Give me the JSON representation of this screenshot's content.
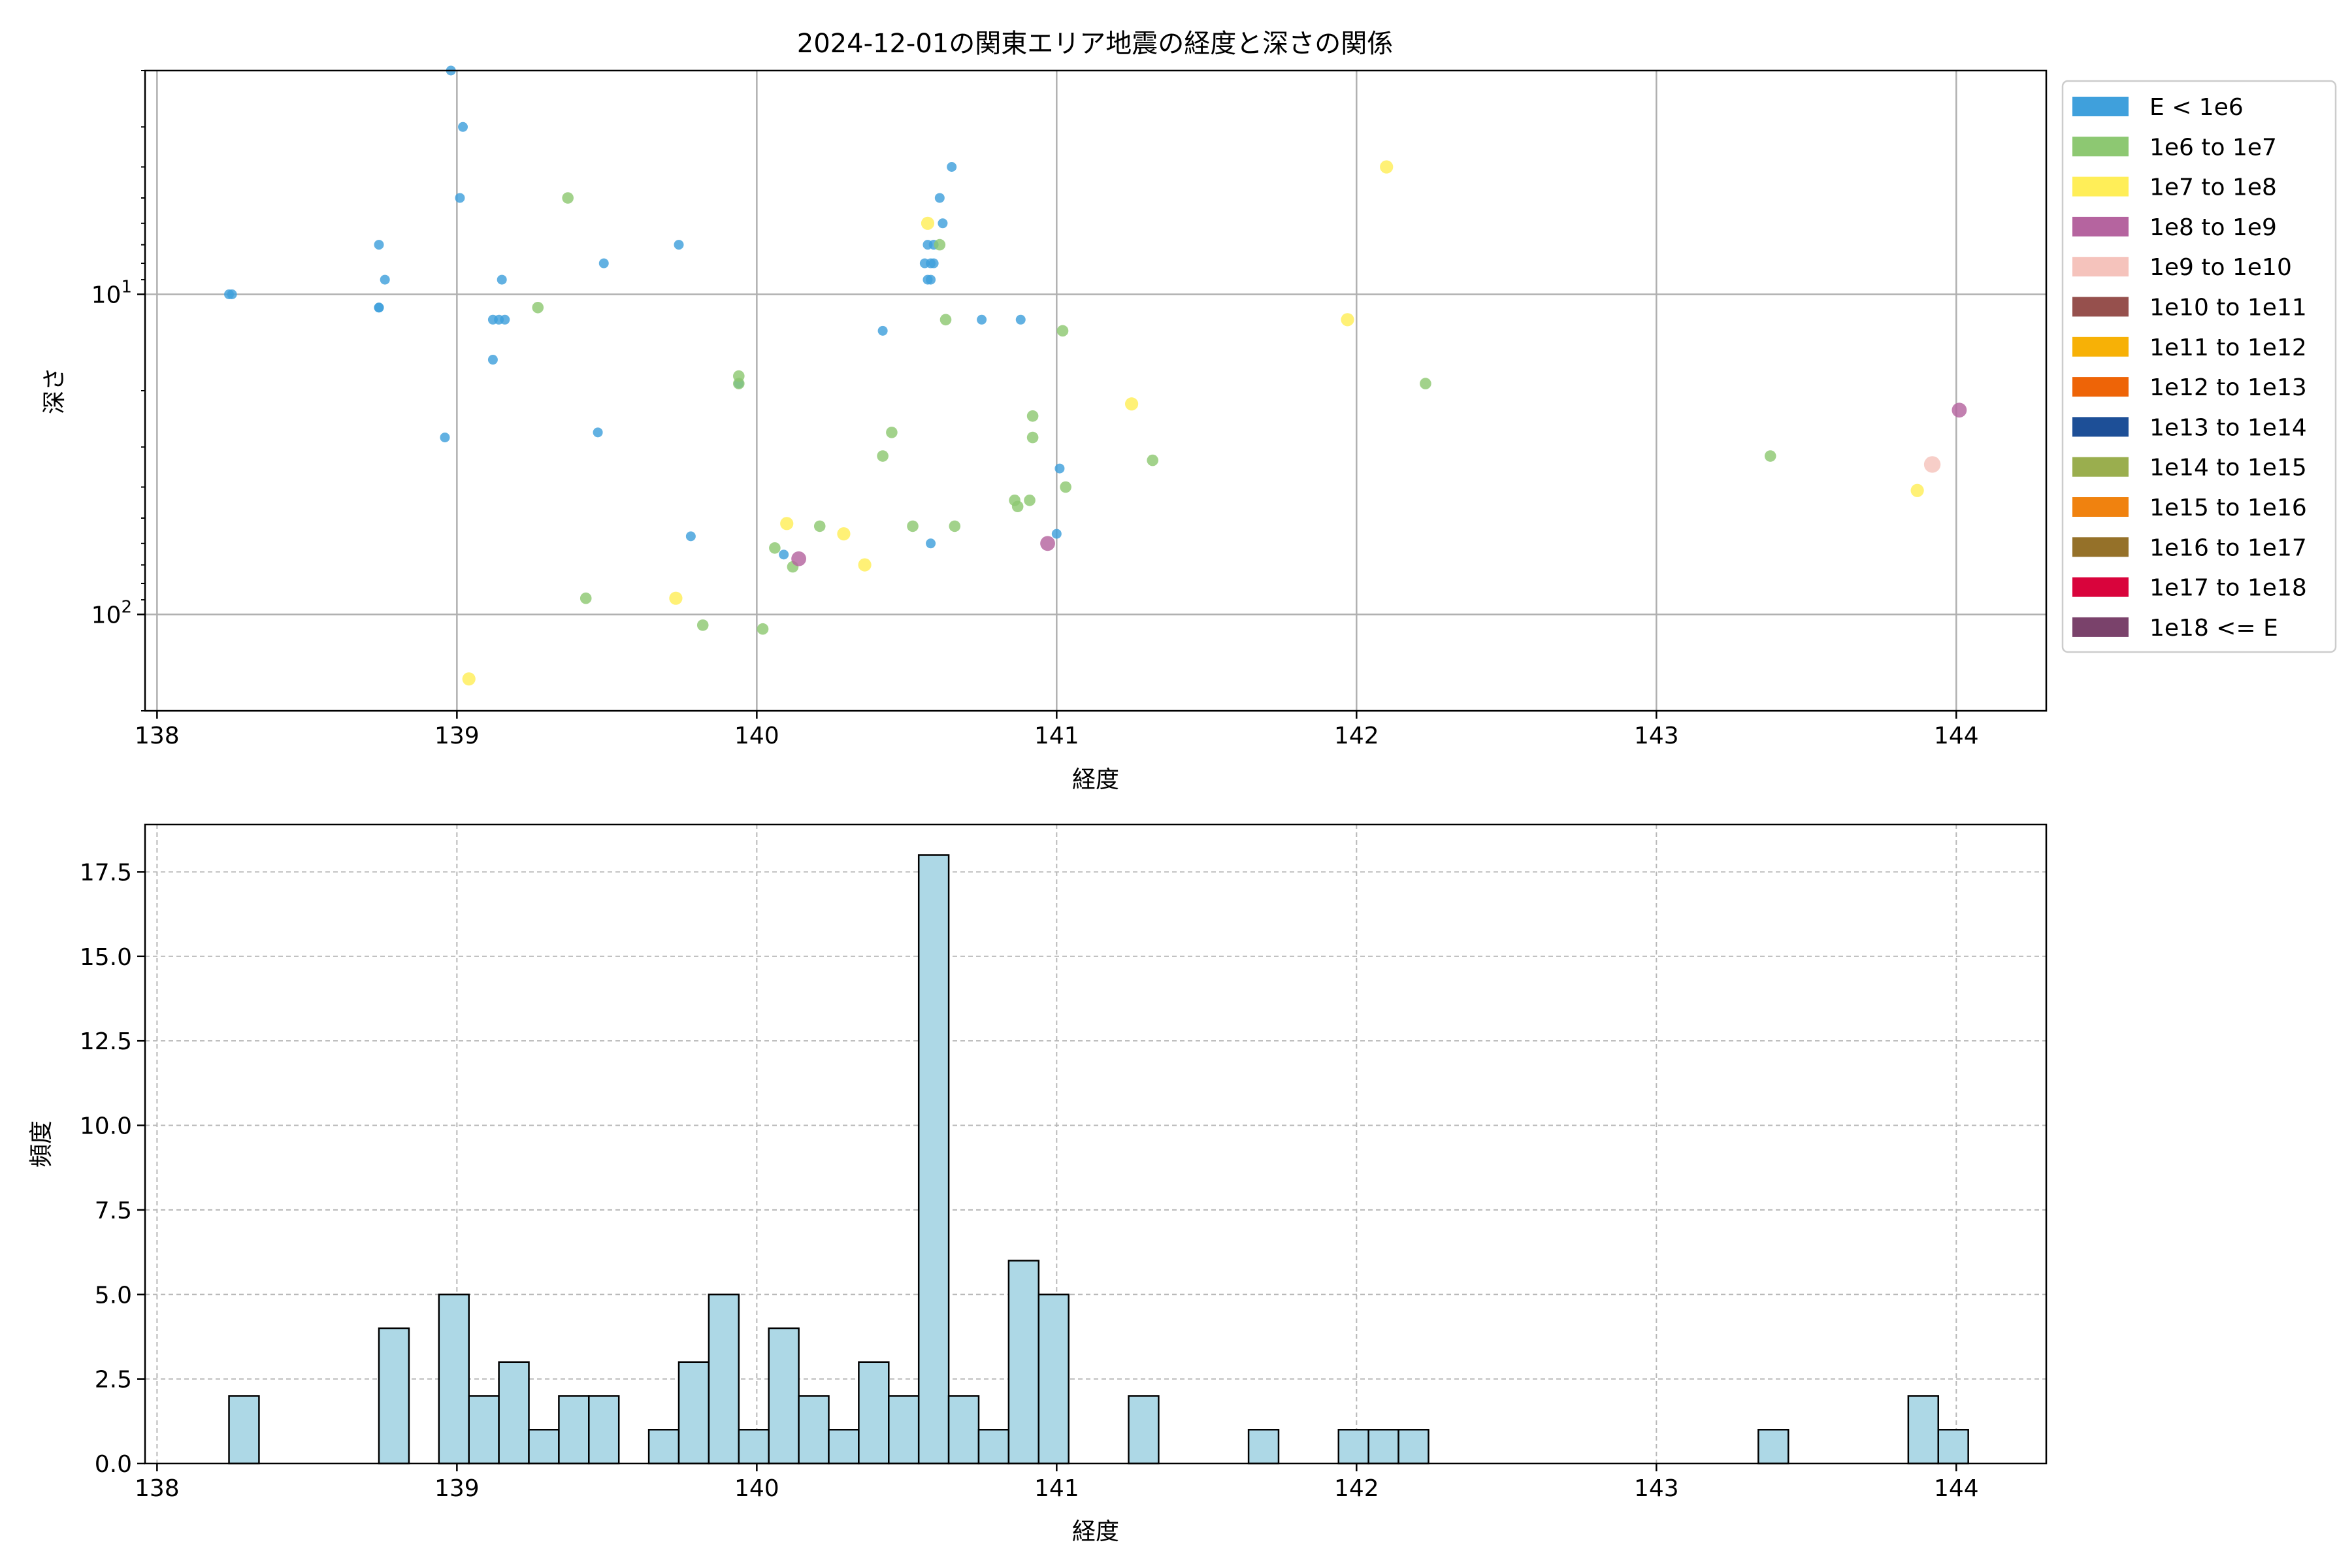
{
  "chart_data": [
    {
      "type": "scatter",
      "title": "2024-12-01の関東エリア地震の経度と深さの関係",
      "xlabel": "経度",
      "ylabel": "深さ",
      "xlim": [
        137.96,
        144.3
      ],
      "ylim_display": [
        200,
        2
      ],
      "yscale": "log",
      "y_inverted": true,
      "x_ticks": [
        "138",
        "139",
        "140",
        "141",
        "142",
        "143",
        "144"
      ],
      "y_ticks": [
        {
          "value": 10,
          "base": "10",
          "exp": "1"
        },
        {
          "value": 100,
          "base": "10",
          "exp": "2"
        }
      ],
      "grid": true,
      "legend_position": "outside-right",
      "legend": [
        {
          "label": "E < 1e6",
          "color": "#3fa0dc"
        },
        {
          "label": "1e6 to 1e7",
          "color": "#8dc872"
        },
        {
          "label": "1e7 to 1e8",
          "color": "#ffee58"
        },
        {
          "label": "1e8 to 1e9",
          "color": "#b5649f"
        },
        {
          "label": "1e9 to 1e10",
          "color": "#f5c3bc"
        },
        {
          "label": "1e10 to 1e11",
          "color": "#96504d"
        },
        {
          "label": "1e11 to 1e12",
          "color": "#f7b106"
        },
        {
          "label": "1e12 to 1e13",
          "color": "#ee6407"
        },
        {
          "label": "1e13 to 1e14",
          "color": "#1d4f97"
        },
        {
          "label": "1e14 to 1e15",
          "color": "#9aae4e"
        },
        {
          "label": "1e15 to 1e16",
          "color": "#f0820f"
        },
        {
          "label": "1e16 to 1e17",
          "color": "#957129"
        },
        {
          "label": "1e17 to 1e18",
          "color": "#d9043c"
        },
        {
          "label": "1e18 <= E",
          "color": "#7a426b"
        }
      ],
      "series": [
        {
          "legend_index": 0,
          "points": [
            [
              138.24,
              10
            ],
            [
              138.25,
              10
            ],
            [
              138.74,
              7
            ],
            [
              138.76,
              9
            ],
            [
              138.74,
              11
            ],
            [
              138.74,
              11
            ],
            [
              138.98,
              2
            ],
            [
              139.02,
              3
            ],
            [
              139.01,
              5
            ],
            [
              139.15,
              9
            ],
            [
              139.12,
              12
            ],
            [
              139.14,
              12
            ],
            [
              139.16,
              12
            ],
            [
              139.12,
              16
            ],
            [
              138.96,
              28
            ],
            [
              139.49,
              8
            ],
            [
              139.47,
              27
            ],
            [
              139.74,
              7
            ],
            [
              139.78,
              57
            ],
            [
              139.94,
              19
            ],
            [
              140.42,
              13
            ],
            [
              140.65,
              4
            ],
            [
              140.61,
              5
            ],
            [
              140.62,
              6
            ],
            [
              140.57,
              7
            ],
            [
              140.59,
              7
            ],
            [
              140.56,
              8
            ],
            [
              140.58,
              8
            ],
            [
              140.59,
              8
            ],
            [
              140.57,
              9
            ],
            [
              140.58,
              9
            ],
            [
              140.75,
              12
            ],
            [
              140.88,
              12
            ],
            [
              140.58,
              60
            ],
            [
              141.01,
              35
            ],
            [
              141.0,
              56
            ],
            [
              140.09,
              65
            ]
          ]
        },
        {
          "legend_index": 1,
          "points": [
            [
              139.37,
              5
            ],
            [
              139.27,
              11
            ],
            [
              139.94,
              18
            ],
            [
              139.94,
              19
            ],
            [
              140.45,
              27
            ],
            [
              140.42,
              32
            ],
            [
              140.52,
              53
            ],
            [
              140.66,
              53
            ],
            [
              140.21,
              53
            ],
            [
              140.06,
              62
            ],
            [
              140.12,
              71
            ],
            [
              140.61,
              7
            ],
            [
              140.63,
              12
            ],
            [
              140.92,
              24
            ],
            [
              140.92,
              28
            ],
            [
              141.02,
              13
            ],
            [
              141.03,
              40
            ],
            [
              140.91,
              44
            ],
            [
              140.86,
              44
            ],
            [
              140.87,
              46
            ],
            [
              141.32,
              33
            ],
            [
              142.23,
              19
            ],
            [
              143.38,
              32
            ],
            [
              139.43,
              89
            ],
            [
              139.82,
              108
            ],
            [
              140.02,
              111
            ]
          ]
        },
        {
          "legend_index": 2,
          "points": [
            [
              140.57,
              6
            ],
            [
              140.1,
              52
            ],
            [
              140.29,
              56
            ],
            [
              140.36,
              70
            ],
            [
              139.73,
              89
            ],
            [
              139.04,
              159
            ],
            [
              141.25,
              22
            ],
            [
              141.97,
              12
            ],
            [
              142.1,
              4
            ],
            [
              143.87,
              41
            ]
          ]
        },
        {
          "legend_index": 3,
          "points": [
            [
              140.14,
              67
            ],
            [
              140.97,
              60
            ],
            [
              144.01,
              23
            ]
          ]
        },
        {
          "legend_index": 4,
          "points": [
            [
              143.92,
              34
            ]
          ]
        }
      ]
    },
    {
      "type": "bar",
      "xlabel": "経度",
      "ylabel": "頻度",
      "xlim": [
        137.96,
        144.3
      ],
      "ylim": [
        0,
        18.9
      ],
      "x_ticks": [
        "138",
        "139",
        "140",
        "141",
        "142",
        "143",
        "144"
      ],
      "y_ticks": [
        "0.0",
        "2.5",
        "5.0",
        "7.5",
        "10.0",
        "12.5",
        "15.0",
        "17.5"
      ],
      "grid": true,
      "bar_color": "#add8e6",
      "bins": [
        {
          "x0": 138.24,
          "x1": 138.34,
          "count": 2
        },
        {
          "x0": 138.74,
          "x1": 138.84,
          "count": 4
        },
        {
          "x0": 138.94,
          "x1": 139.04,
          "count": 5
        },
        {
          "x0": 139.04,
          "x1": 139.14,
          "count": 2
        },
        {
          "x0": 139.14,
          "x1": 139.24,
          "count": 3
        },
        {
          "x0": 139.24,
          "x1": 139.34,
          "count": 1
        },
        {
          "x0": 139.34,
          "x1": 139.44,
          "count": 2
        },
        {
          "x0": 139.44,
          "x1": 139.54,
          "count": 2
        },
        {
          "x0": 139.64,
          "x1": 139.74,
          "count": 1
        },
        {
          "x0": 139.74,
          "x1": 139.84,
          "count": 3
        },
        {
          "x0": 139.84,
          "x1": 139.94,
          "count": 5
        },
        {
          "x0": 139.94,
          "x1": 140.04,
          "count": 1
        },
        {
          "x0": 140.04,
          "x1": 140.14,
          "count": 4
        },
        {
          "x0": 140.14,
          "x1": 140.24,
          "count": 2
        },
        {
          "x0": 140.24,
          "x1": 140.34,
          "count": 1
        },
        {
          "x0": 140.34,
          "x1": 140.44,
          "count": 3
        },
        {
          "x0": 140.44,
          "x1": 140.54,
          "count": 2
        },
        {
          "x0": 140.54,
          "x1": 140.64,
          "count": 18
        },
        {
          "x0": 140.64,
          "x1": 140.74,
          "count": 2
        },
        {
          "x0": 140.74,
          "x1": 140.84,
          "count": 1
        },
        {
          "x0": 140.84,
          "x1": 140.94,
          "count": 6
        },
        {
          "x0": 140.94,
          "x1": 141.04,
          "count": 5
        },
        {
          "x0": 141.24,
          "x1": 141.34,
          "count": 2
        },
        {
          "x0": 141.64,
          "x1": 141.74,
          "count": 1
        },
        {
          "x0": 141.94,
          "x1": 142.04,
          "count": 1
        },
        {
          "x0": 142.04,
          "x1": 142.14,
          "count": 1
        },
        {
          "x0": 142.14,
          "x1": 142.24,
          "count": 1
        },
        {
          "x0": 143.34,
          "x1": 143.44,
          "count": 1
        },
        {
          "x0": 143.84,
          "x1": 143.94,
          "count": 2
        },
        {
          "x0": 143.94,
          "x1": 144.04,
          "count": 1
        }
      ]
    }
  ]
}
